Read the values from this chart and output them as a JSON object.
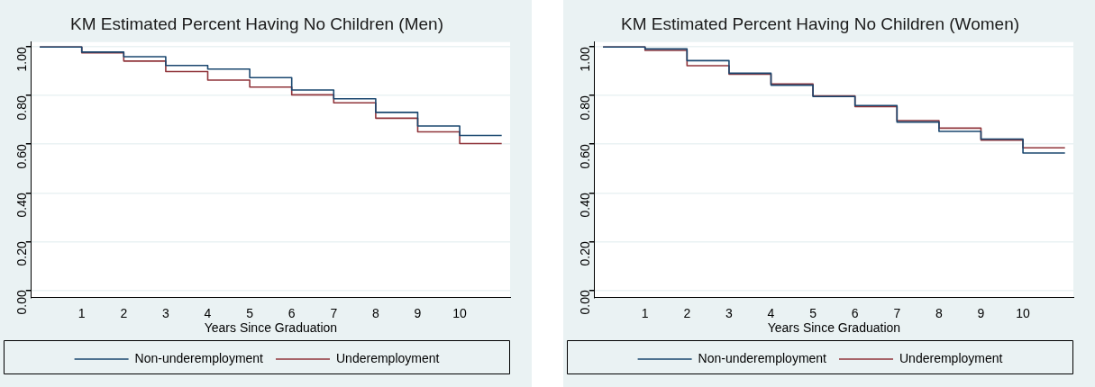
{
  "chart_data": [
    {
      "type": "step",
      "title": "KM Estimated Percent Having No Children (Men)",
      "xlabel": "Years Since Graduation",
      "x": [
        0,
        1,
        2,
        3,
        4,
        5,
        6,
        7,
        8,
        9,
        10,
        11
      ],
      "xlim": [
        -0.2,
        11.2
      ],
      "xticks": [
        1,
        2,
        3,
        4,
        5,
        6,
        7,
        8,
        9,
        10
      ],
      "ylim": [
        -0.03,
        1.02
      ],
      "yticks": [
        {
          "value": 0,
          "label": "0.00"
        },
        {
          "value": 0.2,
          "label": "0.20"
        },
        {
          "value": 0.4,
          "label": "0.40"
        },
        {
          "value": 0.6,
          "label": "0.60"
        },
        {
          "value": 0.8,
          "label": "0.80"
        },
        {
          "value": 1,
          "label": "1.00"
        }
      ],
      "grid": "y",
      "legend": "bottom",
      "marker": "none",
      "line_style": "solid",
      "series": [
        {
          "name": "Non-underemployment",
          "color": "#1a476f",
          "values": [
            1.0,
            0.979,
            0.96,
            0.924,
            0.909,
            0.874,
            0.823,
            0.787,
            0.731,
            0.675,
            0.636,
            0.636
          ]
        },
        {
          "name": "Underemployment",
          "color": "#90353b",
          "values": [
            1.0,
            0.976,
            0.942,
            0.899,
            0.864,
            0.835,
            0.803,
            0.77,
            0.707,
            0.651,
            0.603,
            0.603
          ]
        }
      ]
    },
    {
      "type": "step",
      "title": "KM Estimated Percent Having No Children (Women)",
      "xlabel": "Years Since Graduation",
      "x": [
        0,
        1,
        2,
        3,
        4,
        5,
        6,
        7,
        8,
        9,
        10,
        11
      ],
      "xlim": [
        -0.2,
        11.2
      ],
      "xticks": [
        1,
        2,
        3,
        4,
        5,
        6,
        7,
        8,
        9,
        10
      ],
      "ylim": [
        -0.03,
        1.02
      ],
      "yticks": [
        {
          "value": 0,
          "label": "0.00"
        },
        {
          "value": 0.2,
          "label": "0.20"
        },
        {
          "value": 0.4,
          "label": "0.40"
        },
        {
          "value": 0.6,
          "label": "0.60"
        },
        {
          "value": 0.8,
          "label": "0.80"
        },
        {
          "value": 1,
          "label": "1.00"
        }
      ],
      "grid": "y",
      "legend": "bottom",
      "marker": "none",
      "line_style": "solid",
      "series": [
        {
          "name": "Non-underemployment",
          "color": "#1a476f",
          "values": [
            1.0,
            0.992,
            0.944,
            0.892,
            0.843,
            0.796,
            0.759,
            0.691,
            0.653,
            0.621,
            0.564,
            0.564
          ]
        },
        {
          "name": "Underemployment",
          "color": "#90353b",
          "values": [
            1.0,
            0.986,
            0.923,
            0.888,
            0.848,
            0.799,
            0.755,
            0.697,
            0.666,
            0.617,
            0.585,
            0.585
          ]
        }
      ]
    }
  ]
}
